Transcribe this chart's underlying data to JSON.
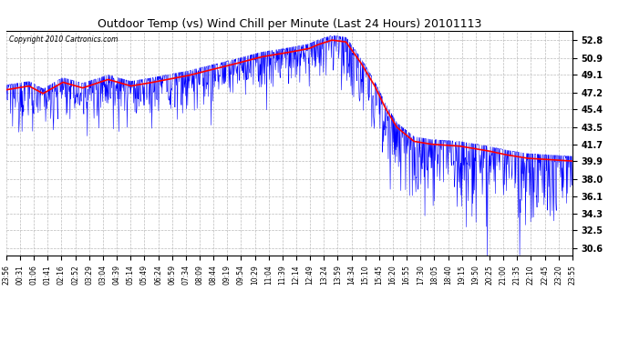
{
  "title": "Outdoor Temp (vs) Wind Chill per Minute (Last 24 Hours) 20101113",
  "copyright": "Copyright 2010 Cartronics.com",
  "yticks": [
    30.6,
    32.5,
    34.3,
    36.1,
    38.0,
    39.9,
    41.7,
    43.5,
    45.4,
    47.2,
    49.1,
    50.9,
    52.8
  ],
  "ylim": [
    29.8,
    53.8
  ],
  "background_color": "#ffffff",
  "plot_bg_color": "#ffffff",
  "grid_color": "#bbbbbb",
  "blue_color": "#0000ff",
  "red_color": "#ff0000",
  "xtick_labels": [
    "23:56",
    "00:31",
    "01:06",
    "01:41",
    "02:16",
    "02:52",
    "03:29",
    "03:04",
    "04:39",
    "05:14",
    "05:49",
    "06:24",
    "06:59",
    "07:34",
    "08:09",
    "08:44",
    "09:19",
    "09:54",
    "10:29",
    "11:04",
    "11:39",
    "12:14",
    "12:49",
    "13:24",
    "13:59",
    "14:34",
    "15:10",
    "15:45",
    "16:20",
    "16:55",
    "17:30",
    "18:05",
    "18:40",
    "19:15",
    "19:50",
    "20:25",
    "21:00",
    "21:35",
    "22:10",
    "22:45",
    "23:20",
    "23:55"
  ],
  "n_points": 1440,
  "figsize": [
    6.9,
    3.75
  ],
  "dpi": 100
}
